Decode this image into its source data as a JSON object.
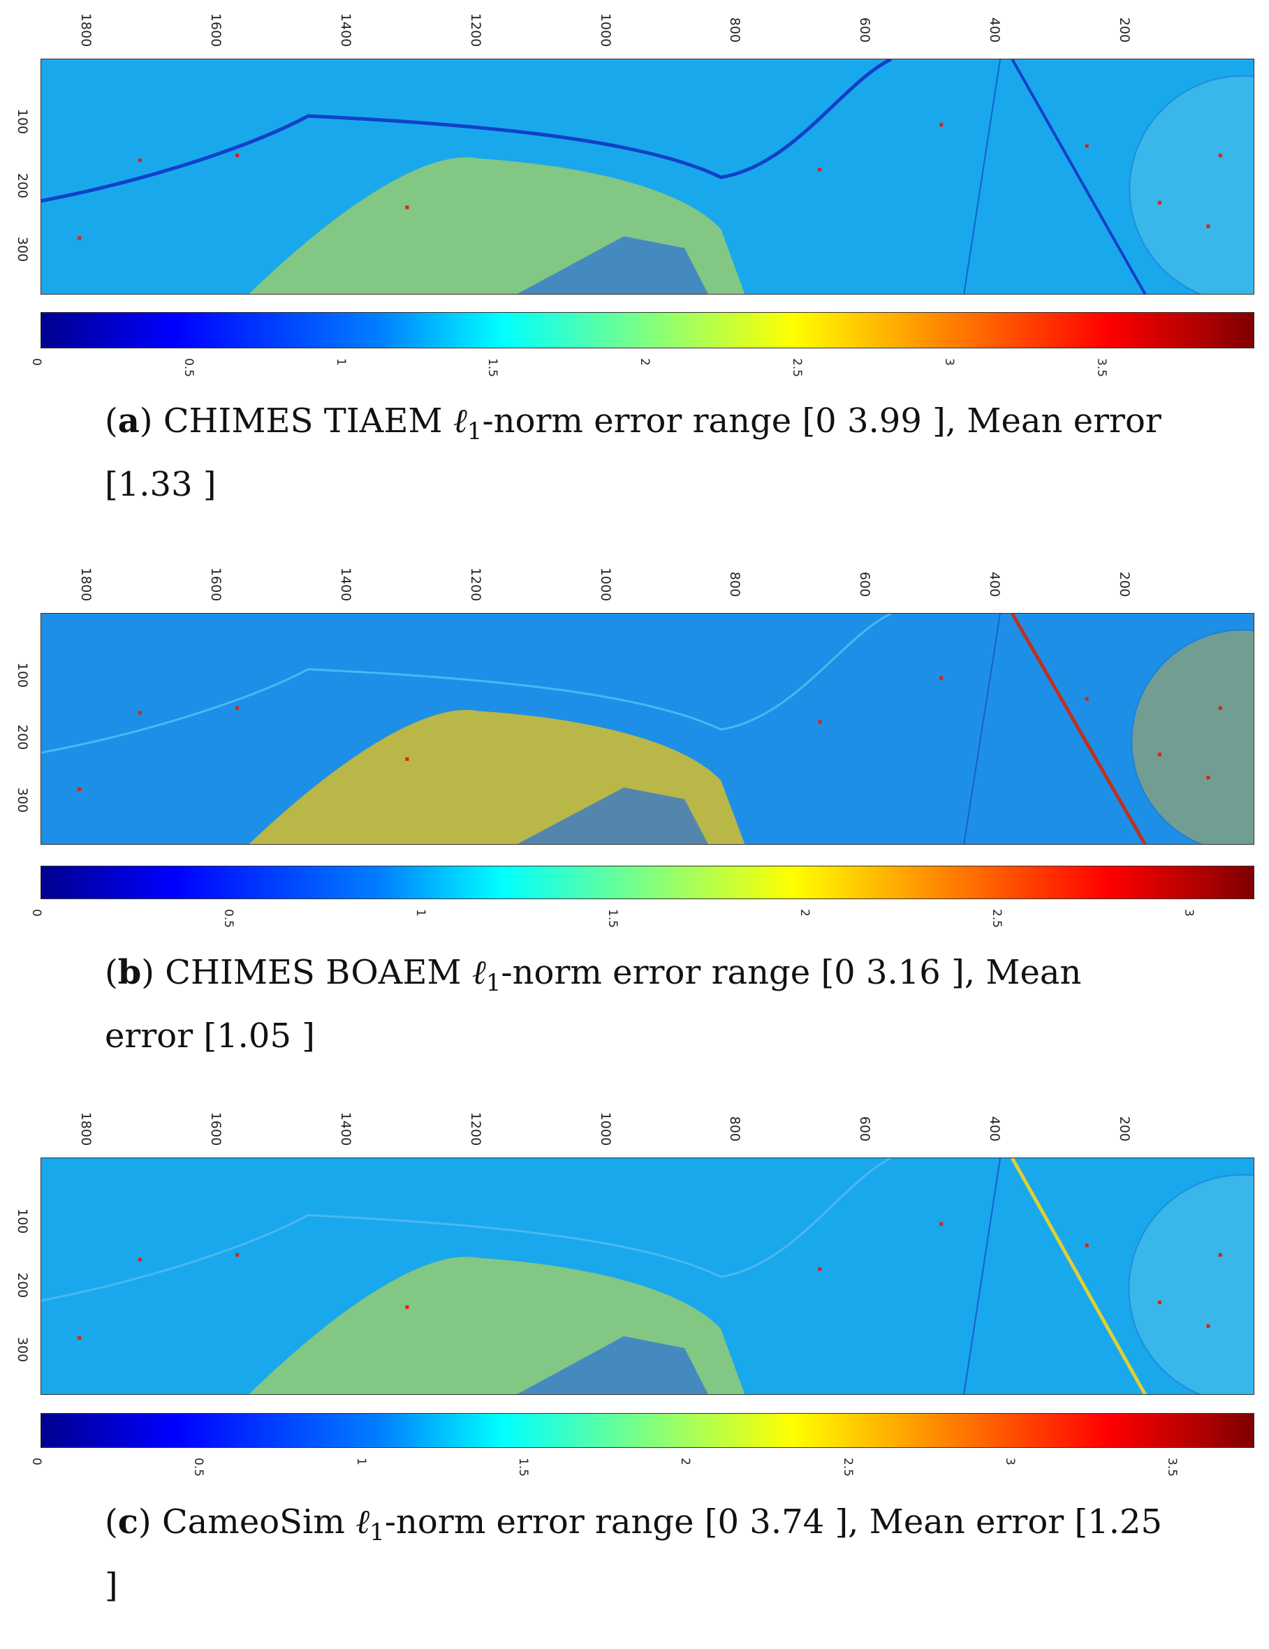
{
  "chart_data": [
    {
      "type": "heatmap",
      "panel_letter": "a",
      "caption_text": "CHIMES TIAEM ℓ1-norm error range [0 3.99 ], Mean error [1.33 ]",
      "caption_before": "CHIMES TIAEM ",
      "caption_after": "-norm error range [0 3.99 ], Mean error [1.33 ]",
      "x_ticks": [
        "1800",
        "1600",
        "1400",
        "1200",
        "1000",
        "800",
        "600",
        "400",
        "200"
      ],
      "y_ticks": [
        "100",
        "200",
        "300"
      ],
      "colorbar_ticks": [
        "0",
        "0.5",
        "1",
        "1.5",
        "2",
        "2.5",
        "3",
        "3.5"
      ],
      "colorbar_range": [
        0,
        3.99
      ],
      "mean_error": 1.33
    },
    {
      "type": "heatmap",
      "panel_letter": "b",
      "caption_text": "CHIMES BOAEM ℓ1-norm error range [0 3.16 ], Mean error [1.05 ]",
      "caption_before": "CHIMES BOAEM ",
      "caption_after": "-norm error range [0 3.16 ], Mean error [1.05 ]",
      "x_ticks": [
        "1800",
        "1600",
        "1400",
        "1200",
        "1000",
        "800",
        "600",
        "400",
        "200"
      ],
      "y_ticks": [
        "100",
        "200",
        "300"
      ],
      "colorbar_ticks": [
        "0",
        "0.5",
        "1",
        "1.5",
        "2",
        "2.5",
        "3"
      ],
      "colorbar_range": [
        0,
        3.16
      ],
      "mean_error": 1.05
    },
    {
      "type": "heatmap",
      "panel_letter": "c",
      "caption_text": "CameoSim ℓ1-norm error range [0 3.74 ], Mean error [1.25 ]",
      "caption_before": "CameoSim ",
      "caption_after": "-norm error range [0 3.74 ], Mean error [1.25 ]",
      "x_ticks": [
        "1800",
        "1600",
        "1400",
        "1200",
        "1000",
        "800",
        "600",
        "400",
        "200"
      ],
      "y_ticks": [
        "100",
        "200",
        "300"
      ],
      "colorbar_ticks": [
        "0",
        "0.5",
        "1",
        "1.5",
        "2",
        "2.5",
        "3",
        "3.5"
      ],
      "colorbar_range": [
        0,
        3.74
      ],
      "mean_error": 1.25
    }
  ],
  "symbols": {
    "ell": "ℓ",
    "one": "1"
  },
  "colors": {
    "map_base": "#1aa8ec",
    "road": "#1040c8",
    "hot_region": "#d8e030",
    "hot_spot": "#e02010"
  }
}
